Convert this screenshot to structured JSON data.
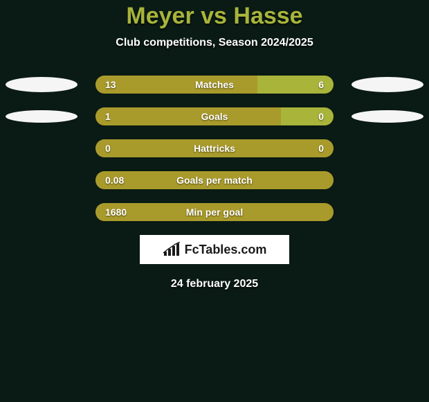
{
  "background_color": "#0a1a14",
  "title": {
    "text": "Meyer vs Hasse",
    "color": "#a8b43a",
    "fontsize": 34,
    "fontweight": 800
  },
  "subtitle": {
    "text": "Club competitions, Season 2024/2025",
    "color": "#ffffff",
    "fontsize": 16
  },
  "bar_style": {
    "left_color": "#a99b2b",
    "right_color": "#a8b43a",
    "track_color": "#a99b2b",
    "height": 26,
    "radius": 13,
    "label_color": "#ffffff",
    "label_fontsize": 14
  },
  "avatar_style": {
    "width": 104,
    "height_row0": 22,
    "height_row1": 18,
    "bg": "#f5f5f5"
  },
  "rows": [
    {
      "label": "Matches",
      "left": "13",
      "right": "6",
      "left_pct": 68,
      "right_pct": 32,
      "show_avatars": true,
      "avatar_h": 22
    },
    {
      "label": "Goals",
      "left": "1",
      "right": "0",
      "left_pct": 78,
      "right_pct": 22,
      "show_avatars": true,
      "avatar_h": 18
    },
    {
      "label": "Hattricks",
      "left": "0",
      "right": "0",
      "left_pct": 100,
      "right_pct": 0,
      "show_avatars": false
    },
    {
      "label": "Goals per match",
      "left": "0.08",
      "right": "",
      "left_pct": 100,
      "right_pct": 0,
      "show_avatars": false
    },
    {
      "label": "Min per goal",
      "left": "1680",
      "right": "",
      "left_pct": 100,
      "right_pct": 0,
      "show_avatars": false
    }
  ],
  "logo": {
    "text": "FcTables.com",
    "box_bg": "#ffffff",
    "text_color": "#1a1a1a",
    "icon_color": "#1a1a1a"
  },
  "date": {
    "text": "24 february 2025",
    "color": "#ffffff",
    "fontsize": 16
  }
}
